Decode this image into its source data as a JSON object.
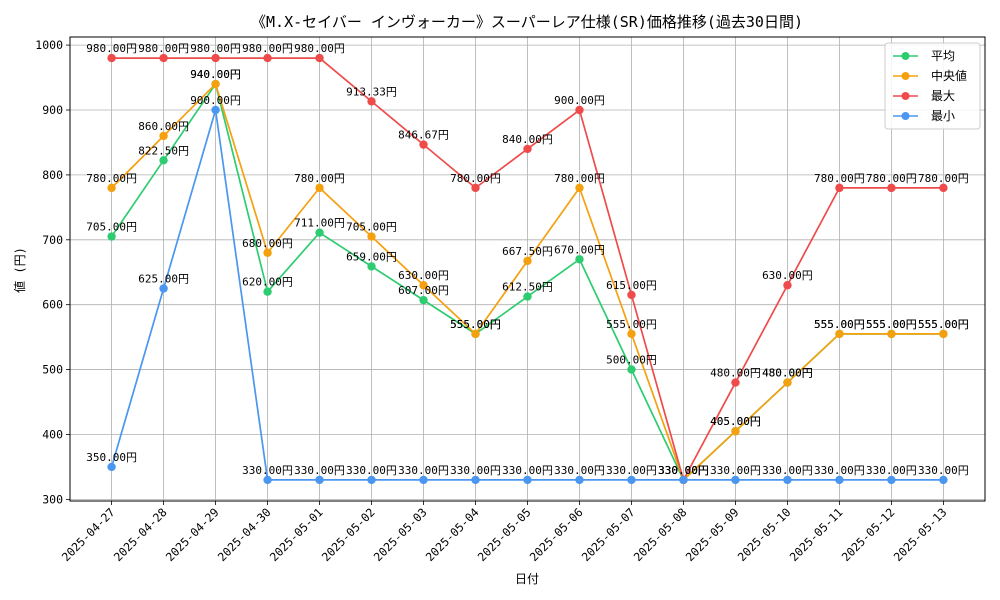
{
  "chart_data": {
    "type": "line",
    "title": "《M.X-セイバー インヴォーカー》スーパーレア仕様(SR)価格推移(過去30日間)",
    "xlabel": "日付",
    "ylabel": "値 (円)",
    "x": [
      "2025-04-27",
      "2025-04-28",
      "2025-04-29",
      "2025-04-30",
      "2025-05-01",
      "2025-05-02",
      "2025-05-03",
      "2025-05-04",
      "2025-05-05",
      "2025-05-06",
      "2025-05-07",
      "2025-05-08",
      "2025-05-09",
      "2025-05-10",
      "2025-05-11",
      "2025-05-12",
      "2025-05-13"
    ],
    "ylim": [
      297.5,
      1012.5
    ],
    "yticks": [
      300,
      400,
      500,
      600,
      700,
      800,
      900,
      1000
    ],
    "grid": true,
    "legend_position": "top-right",
    "value_unit": "円",
    "series": [
      {
        "name": "平均",
        "color": "#2ecc71",
        "values": [
          705,
          822.5,
          940,
          620,
          711,
          659,
          607,
          555,
          612.5,
          670,
          500,
          330,
          405,
          480,
          555,
          555,
          555
        ]
      },
      {
        "name": "中央値",
        "color": "#f5a00f",
        "values": [
          780,
          860,
          940,
          680,
          780,
          705,
          630,
          555,
          667.5,
          780,
          555,
          330,
          405,
          480,
          555,
          555,
          555
        ]
      },
      {
        "name": "最大",
        "color": "#ef4b4b",
        "values": [
          980,
          980,
          980,
          980,
          980,
          913.33,
          846.67,
          780,
          840,
          900,
          615,
          330,
          480,
          630,
          780,
          780,
          780
        ]
      },
      {
        "name": "最小",
        "color": "#4a96f0",
        "values": [
          350,
          625,
          900,
          330,
          330,
          330,
          330,
          330,
          330,
          330,
          330,
          330,
          330,
          330,
          330,
          330,
          330
        ]
      }
    ]
  }
}
